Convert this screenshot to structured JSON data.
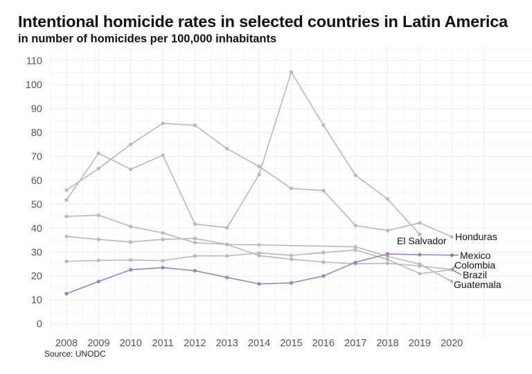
{
  "header": {
    "title": "Intentional homicide rates in selected countries in Latin America",
    "subtitle": "in number of homicides per 100,000 inhabitants"
  },
  "footer": {
    "source": "Source: UNODC"
  },
  "colors": {
    "highlight": "#9d7fd0",
    "muted": "#b8b8b8",
    "grid": "#ececec",
    "tick_text": "#555555"
  },
  "chart_data": {
    "type": "line",
    "title": "Intentional homicide rates in selected countries in Latin America",
    "subtitle": "in number of homicides per 100,000 inhabitants",
    "xlabel": "",
    "ylabel": "",
    "x": [
      2008,
      2009,
      2010,
      2011,
      2012,
      2013,
      2014,
      2015,
      2016,
      2017,
      2018,
      2019,
      2020
    ],
    "x_ticks": [
      "2008",
      "2009",
      "2010",
      "2011",
      "2012",
      "2013",
      "2014",
      "2015",
      "2016",
      "2017",
      "2018",
      "2019",
      "2020"
    ],
    "y_ticks": [
      "0",
      "10",
      "20",
      "30",
      "40",
      "50",
      "60",
      "70",
      "80",
      "90",
      "100",
      "110"
    ],
    "ylim": [
      -5,
      115
    ],
    "xlim": [
      2007.3,
      2023.5
    ],
    "grid": true,
    "legend": "direct labels at line ends (right)",
    "source": "Source: UNODC",
    "series": [
      {
        "name": "Honduras",
        "highlight": false,
        "values": [
          55.9,
          64.9,
          75.0,
          83.8,
          83.0,
          73.2,
          65.8,
          56.6,
          55.7,
          41.1,
          39.0,
          42.2,
          36.4
        ]
      },
      {
        "name": "El Salvador",
        "highlight": false,
        "values": [
          51.8,
          71.3,
          64.6,
          70.5,
          41.7,
          40.2,
          62.4,
          105.2,
          83.1,
          62.1,
          52.2,
          37.4,
          null
        ]
      },
      {
        "name": "Mexico",
        "highlight": true,
        "values": [
          12.6,
          17.7,
          22.6,
          23.5,
          22.2,
          19.4,
          16.7,
          17.1,
          20.0,
          25.7,
          29.2,
          28.9,
          28.7
        ]
      },
      {
        "name": "Colombia",
        "highlight": false,
        "values": [
          36.5,
          35.3,
          34.2,
          35.3,
          35.7,
          33.2,
          28.5,
          27.0,
          25.8,
          25.1,
          25.3,
          24.2,
          22.7
        ]
      },
      {
        "name": "Brazil",
        "highlight": false,
        "values": [
          26.1,
          26.5,
          26.7,
          26.4,
          28.4,
          28.4,
          29.6,
          28.6,
          29.8,
          30.9,
          26.9,
          21.0,
          22.6
        ]
      },
      {
        "name": "Guatemala",
        "highlight": false,
        "values": [
          44.9,
          45.4,
          40.7,
          38.0,
          33.9,
          33.2,
          33.0,
          null,
          null,
          32.2,
          28.2,
          25.0,
          17.7
        ]
      }
    ],
    "annotations": [
      {
        "series": "Honduras",
        "text": "Honduras"
      },
      {
        "series": "El Salvador",
        "text": "El Salvador"
      },
      {
        "series": "Mexico",
        "text": "Mexico"
      },
      {
        "series": "Colombia",
        "text": "Colombia"
      },
      {
        "series": "Brazil",
        "text": "Brazil"
      },
      {
        "series": "Guatemala",
        "text": "Guatemala"
      }
    ]
  }
}
